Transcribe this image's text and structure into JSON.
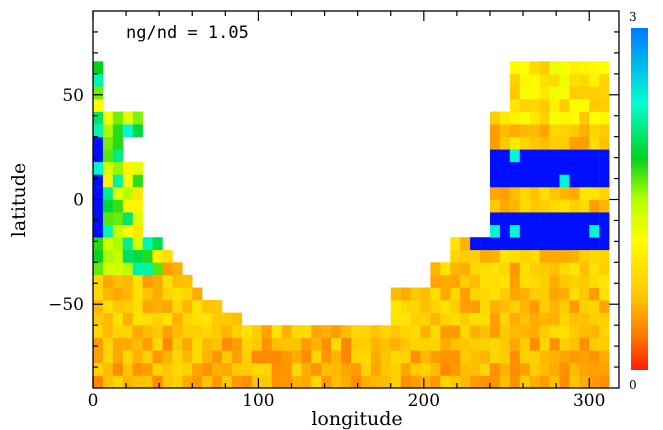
{
  "chart_data": {
    "type": "heatmap",
    "title": "",
    "annotation": "ng/nd = 1.05",
    "xlabel": "longitude",
    "ylabel": "latitude",
    "xlim": [
      0,
      318
    ],
    "ylim": [
      -90,
      90
    ],
    "x_ticks": [
      0,
      100,
      200,
      300
    ],
    "y_ticks": [
      -50,
      0,
      50
    ],
    "colorbar": {
      "min": 0,
      "max": 3,
      "min_label": "0",
      "max_label": "3"
    },
    "colormap": [
      "#ff1e00",
      "#ff7a00",
      "#ffc800",
      "#ffff00",
      "#b4ff00",
      "#00d21e",
      "#00ffd2",
      "#0078ff"
    ],
    "saturation_color": "#0010ff",
    "cell_size_deg": 6,
    "regions_description_values": {
      "south_band_value_range": [
        0.6,
        1.1
      ],
      "west_edge_value_range": [
        1.1,
        2.6
      ],
      "east_high_blocks_value": 3.5
    }
  }
}
